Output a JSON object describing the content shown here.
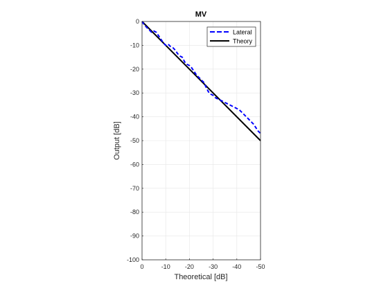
{
  "chart_data": {
    "type": "line",
    "title": "MV",
    "xlabel": "Theoretical [dB]",
    "ylabel": "Output [dB]",
    "x_reversed": true,
    "xlim": [
      0,
      -50
    ],
    "ylim": [
      -100,
      0
    ],
    "xticks": [
      0,
      -10,
      -20,
      -30,
      -40,
      -50
    ],
    "yticks": [
      0,
      -10,
      -20,
      -30,
      -40,
      -50,
      -60,
      -70,
      -80,
      -90,
      -100
    ],
    "xtick_labels": [
      "0",
      "-10",
      "-20",
      "-30",
      "-40",
      "-50"
    ],
    "ytick_labels": [
      "0",
      "-10",
      "-20",
      "-30",
      "-40",
      "-50",
      "-60",
      "-70",
      "-80",
      "-90",
      "-100"
    ],
    "grid": true,
    "legend_position": "top-right",
    "series": [
      {
        "name": "Lateral",
        "color": "#0000ff",
        "style": "dashed",
        "x": [
          0,
          -1,
          -2,
          -3,
          -4,
          -5,
          -6,
          -7,
          -8,
          -9,
          -10,
          -11,
          -12,
          -13,
          -14,
          -15,
          -16,
          -17,
          -18,
          -19,
          -20,
          -21,
          -22,
          -23,
          -24,
          -25,
          -26,
          -27,
          -28,
          -29,
          -30,
          -31,
          -32,
          -33,
          -34,
          -35,
          -36,
          -37,
          -38,
          -39,
          -40,
          -41,
          -42,
          -43,
          -44,
          -45,
          -46,
          -47,
          -48,
          -49,
          -50
        ],
        "y": [
          0,
          -1.5,
          -2.5,
          -3.5,
          -4.5,
          -4.0,
          -4.5,
          -6.0,
          -7.5,
          -9.0,
          -10.0,
          -9.5,
          -10.5,
          -11.0,
          -12.0,
          -13.5,
          -14.5,
          -15.0,
          -17.0,
          -18.0,
          -18.5,
          -19.5,
          -21.0,
          -22.5,
          -23.5,
          -24.5,
          -25.5,
          -27.5,
          -29.5,
          -30.5,
          -31.0,
          -32.0,
          -32.5,
          -33.0,
          -33.5,
          -34.0,
          -34.5,
          -35.0,
          -35.5,
          -36.0,
          -36.5,
          -37.0,
          -38.0,
          -39.0,
          -40.0,
          -41.0,
          -42.0,
          -43.0,
          -44.5,
          -46.0,
          -47.0
        ]
      },
      {
        "name": "Theory",
        "color": "#000000",
        "style": "solid",
        "x": [
          0,
          -50
        ],
        "y": [
          0,
          -50
        ]
      }
    ]
  }
}
